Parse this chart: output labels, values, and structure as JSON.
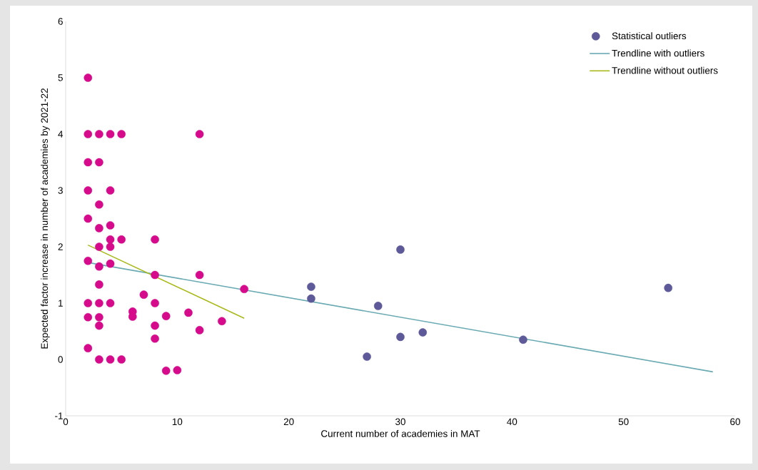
{
  "chart_data": {
    "type": "scatter",
    "xlabel": "Current number of academies in MAT",
    "ylabel": "Expected factor increase in number of academies by 2021-22",
    "xlim": [
      0,
      60
    ],
    "ylim": [
      -1,
      6
    ],
    "xticks": [
      0,
      10,
      20,
      30,
      40,
      50,
      60
    ],
    "yticks": [
      -1,
      0,
      1,
      2,
      3,
      4,
      5,
      6
    ],
    "grid": false,
    "legend": "top right",
    "marker": "circle",
    "series": [
      {
        "color": "#d60b8c",
        "x": [
          2,
          2,
          2,
          2,
          2,
          2,
          2,
          2,
          2,
          3,
          3,
          3,
          3,
          3,
          3,
          3,
          3,
          3,
          3,
          3,
          4,
          4,
          4,
          4,
          4,
          4,
          4,
          4,
          5,
          5,
          5,
          6,
          6,
          7,
          8,
          8,
          8,
          8,
          8,
          9,
          9,
          10,
          11,
          12,
          12,
          12,
          14,
          16
        ],
        "values": [
          5,
          4,
          3.5,
          3,
          2.5,
          1.75,
          1,
          0.75,
          0.2,
          4,
          3.5,
          2.75,
          2.33,
          2,
          1.65,
          1.33,
          1,
          0.75,
          0.6,
          0,
          4,
          3,
          2.38,
          2.13,
          2,
          1.7,
          1,
          0,
          4,
          2.13,
          0,
          0.85,
          0.76,
          1.15,
          2.13,
          1.5,
          1,
          0.6,
          0.37,
          0.77,
          -0.2,
          -0.19,
          0.83,
          4,
          1.5,
          0.52,
          0.68,
          1.25
        ]
      },
      {
        "name": "Statistical outliers",
        "color": "#5e5a99",
        "x": [
          22,
          22,
          27,
          28,
          30,
          30,
          32,
          41,
          54
        ],
        "values": [
          1.29,
          1.08,
          0.05,
          0.95,
          1.95,
          0.4,
          0.48,
          0.35,
          1.27
        ]
      },
      {
        "type": "line",
        "marker": "none",
        "name": "Trendline with outliers",
        "color": "#6aaab3",
        "x": [
          2,
          58
        ],
        "values": [
          1.72,
          -0.22
        ]
      },
      {
        "type": "line",
        "marker": "none",
        "name": "Trendline without outliers",
        "color": "#a9b91a",
        "x": [
          2,
          16
        ],
        "values": [
          2.03,
          0.73
        ]
      }
    ]
  }
}
